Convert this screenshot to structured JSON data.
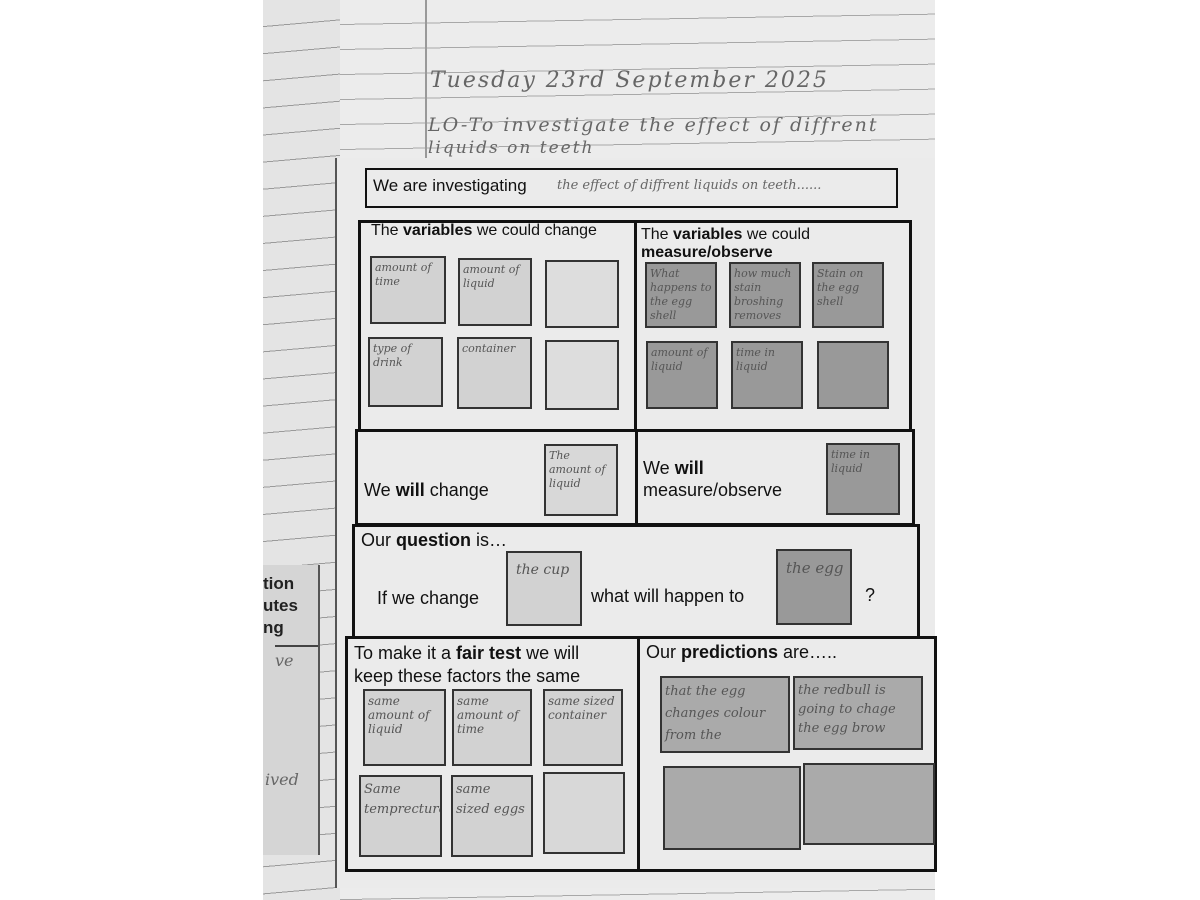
{
  "corner_mark": "?",
  "notebook": {
    "date": "Tuesday 23rd September 2025",
    "lo_line1": "LO-To investigate the effect of diffrent",
    "lo_line2": "liquids on teeth"
  },
  "left_fragment": {
    "lines": [
      "tion",
      "utes",
      "ng"
    ],
    "hand1": "ve",
    "hand2": "ived"
  },
  "worksheet": {
    "investigating": {
      "label": "We are investigating",
      "answer": "the effect of diffrent liquids on teeth......"
    },
    "change_vars": {
      "prefix": "The ",
      "bold": "variables",
      "suffix": " we could change",
      "cards": [
        "amount of time",
        "amount of liquid",
        "",
        "type of drink",
        "container",
        ""
      ]
    },
    "measure_vars": {
      "prefix": "The ",
      "bold": "variables",
      "suffix": " we could",
      "line2": "measure/observe",
      "cards": [
        "What happens to the egg shell",
        "how much stain broshing removes",
        "Stain on the egg shell",
        "amount of liquid",
        "time in liquid",
        ""
      ]
    },
    "will_change": {
      "prefix": "We ",
      "bold": "will",
      "suffix": " change",
      "card": "The amount of liquid"
    },
    "will_measure": {
      "prefix": "We ",
      "bold": "will",
      "line2": "measure/observe",
      "card": "time in liquid"
    },
    "question": {
      "prefix": "Our ",
      "bold": "question",
      "suffix": " is…",
      "if_change": "If we change",
      "card1": "the cup",
      "what_happen": "what will happen to",
      "card2": "the egg",
      "qmark": "?"
    },
    "fair_test": {
      "prefix": "To make it a ",
      "bold": "fair test",
      "suffix": " we will",
      "line2": "keep these factors the same",
      "cards": [
        "same amount of liquid",
        "same amount of time",
        "same sized container",
        "Same temprecture",
        "same sized eggs",
        ""
      ]
    },
    "predictions": {
      "prefix": "Our ",
      "bold": "predictions",
      "suffix": " are…..",
      "cards": [
        "that the egg changes colour from the",
        "the redbull is going to chage the egg brow",
        "",
        ""
      ]
    }
  }
}
